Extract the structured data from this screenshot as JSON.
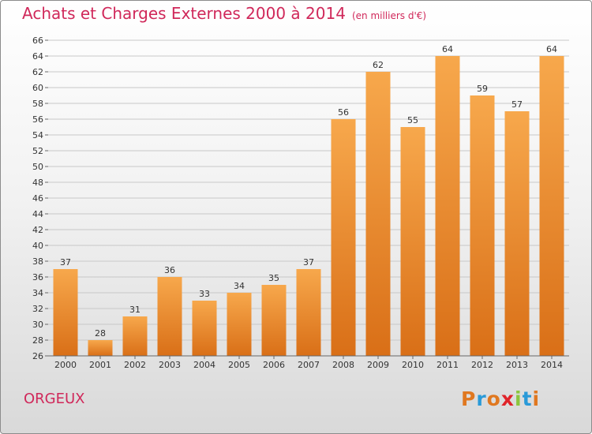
{
  "header": {
    "title": "Achats et Charges Externes 2000 à 2014",
    "unit": "(en milliers d'€)"
  },
  "footer": {
    "commune": "ORGEUX",
    "logo": {
      "letters": [
        "P",
        "r",
        "o",
        "x",
        "i",
        "t",
        "i"
      ],
      "colors": [
        "#e07820",
        "#2a9ad8",
        "#e07820",
        "#e0242a",
        "#8cc63e",
        "#2a9ad8",
        "#e07820"
      ]
    }
  },
  "colors": {
    "bar_top": "#f7a84c",
    "bar_bottom": "#d96f17",
    "title": "#d0285a"
  },
  "chart_data": {
    "type": "bar",
    "title": "Achats et Charges Externes 2000 à 2014",
    "subtitle": "(en milliers d'€)",
    "categories": [
      "2000",
      "2001",
      "2002",
      "2003",
      "2004",
      "2005",
      "2006",
      "2007",
      "2008",
      "2009",
      "2010",
      "2011",
      "2012",
      "2013",
      "2014"
    ],
    "values": [
      37,
      28,
      31,
      36,
      33,
      34,
      35,
      37,
      56,
      62,
      55,
      64,
      59,
      57,
      64
    ],
    "ylim": [
      26,
      66
    ],
    "yticks": [
      26,
      28,
      30,
      32,
      34,
      36,
      38,
      40,
      42,
      44,
      46,
      48,
      50,
      52,
      54,
      56,
      58,
      60,
      62,
      64,
      66
    ],
    "grid": true,
    "xlabel": "",
    "ylabel": ""
  }
}
